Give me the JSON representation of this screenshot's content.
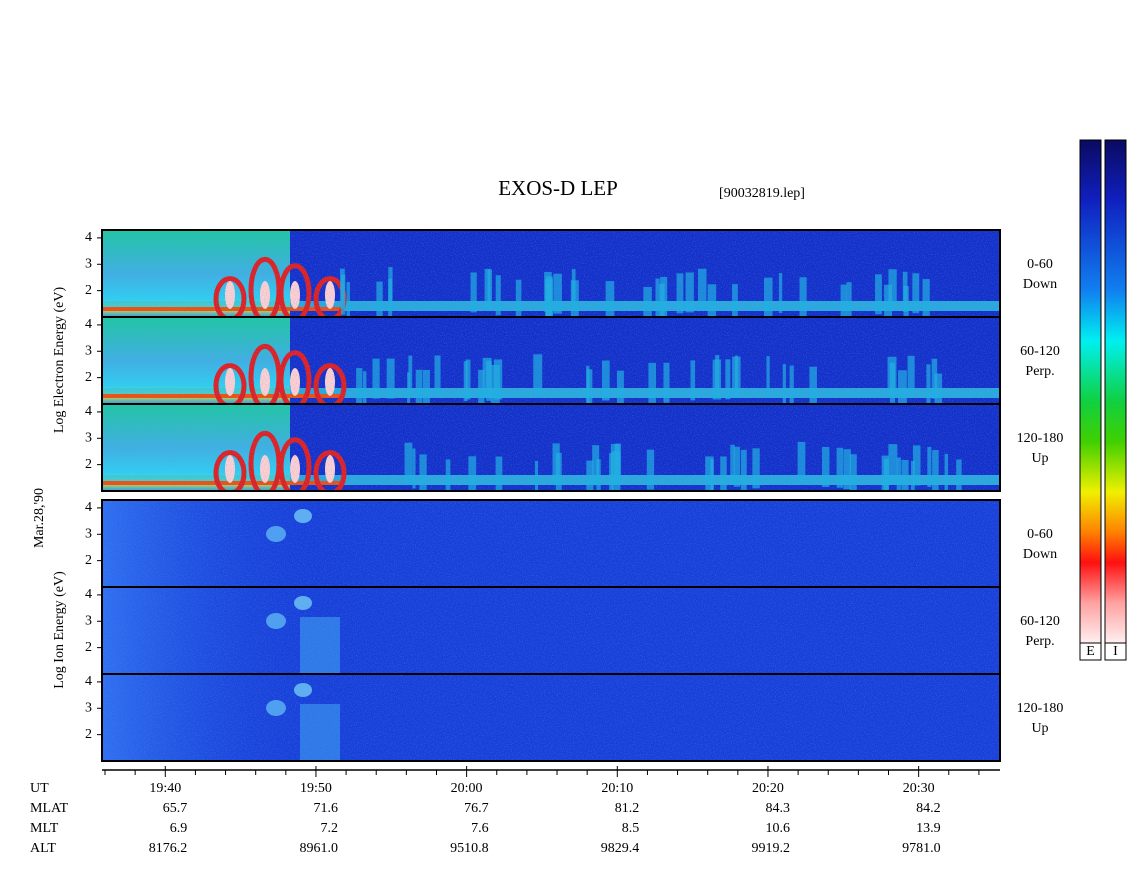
{
  "chart_data": {
    "type": "spectrogram",
    "title": "EXOS-D LEP",
    "subtitle": "[90032819.lep]",
    "date_label": "Mar.28,'90",
    "ylim": [
      1,
      4.3
    ],
    "yticks": [
      2,
      3,
      4
    ],
    "xlim": [
      35.8,
      95.4
    ],
    "xticks": [
      {
        "value": 40,
        "label": "19:40"
      },
      {
        "value": 50,
        "label": "19:50"
      },
      {
        "value": 60,
        "label": "20:00"
      },
      {
        "value": 70,
        "label": "20:10"
      },
      {
        "value": 80,
        "label": "20:20"
      },
      {
        "value": 90,
        "label": "20:30"
      }
    ],
    "minor_xticks": [
      36,
      38,
      42,
      44,
      46,
      48,
      52,
      54,
      56,
      58,
      62,
      64,
      66,
      68,
      72,
      74,
      76,
      78,
      82,
      84,
      86,
      88,
      92,
      94
    ],
    "x_label": "UT",
    "groups": [
      {
        "ylabel": "Log Electron Energy (eV)",
        "panels": [
          {
            "channel": [
              "0-60",
              "Down"
            ]
          },
          {
            "channel": [
              "60-120",
              "Perp."
            ]
          },
          {
            "channel": [
              "120-180",
              "Up"
            ]
          }
        ]
      },
      {
        "ylabel": "Log Ion Energy (eV)",
        "panels": [
          {
            "channel": [
              "0-60",
              "Down"
            ]
          },
          {
            "channel": [
              "60-120",
              "Perp."
            ]
          },
          {
            "channel": [
              "120-180",
              "Up"
            ]
          }
        ]
      }
    ],
    "ephemeris": [
      {
        "label": "MLAT",
        "values": [
          "65.7",
          "71.6",
          "76.7",
          "81.2",
          "84.3",
          "84.2"
        ]
      },
      {
        "label": "MLT",
        "values": [
          "6.9",
          "7.2",
          "7.6",
          "8.5",
          "10.6",
          "13.9"
        ]
      },
      {
        "label": "ALT",
        "values": [
          "8176.2",
          "8961.0",
          "9510.8",
          "9829.4",
          "9919.2",
          "9781.0"
        ]
      }
    ],
    "colorbars": [
      "E",
      "I"
    ]
  }
}
